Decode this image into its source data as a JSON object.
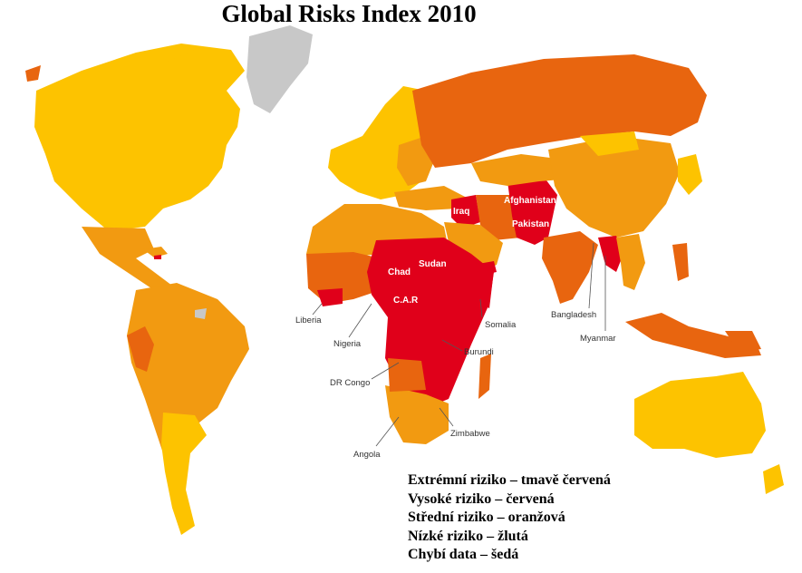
{
  "title": "Global Risks Index 2010",
  "colors": {
    "extreme": "#e0001a",
    "high": "#e8650f",
    "medium": "#f29a11",
    "low": "#fdc300",
    "missing": "#c8c8c8",
    "ocean": "#ffffff"
  },
  "country_labels": {
    "iraq": "Iraq",
    "afghanistan": "Afghanistan",
    "pakistan": "Pakistan",
    "sudan": "Sudan",
    "chad": "Chad",
    "car": "C.A.R",
    "liberia": "Liberia",
    "nigeria": "Nigeria",
    "dr_congo": "DR Congo",
    "somalia": "Somalia",
    "burundi": "Burundi",
    "angola": "Angola",
    "zimbabwe": "Zimbabwe",
    "bangladesh": "Bangladesh",
    "myanmar": "Myanmar"
  },
  "legend": [
    {
      "label": "Extrémní riziko – tmavě červená"
    },
    {
      "label": "Vysoké riziko – červená"
    },
    {
      "label": "Střední riziko – oranžová"
    },
    {
      "label": "Nízké riziko – žlutá"
    },
    {
      "label": "Chybí data – šedá"
    }
  ]
}
